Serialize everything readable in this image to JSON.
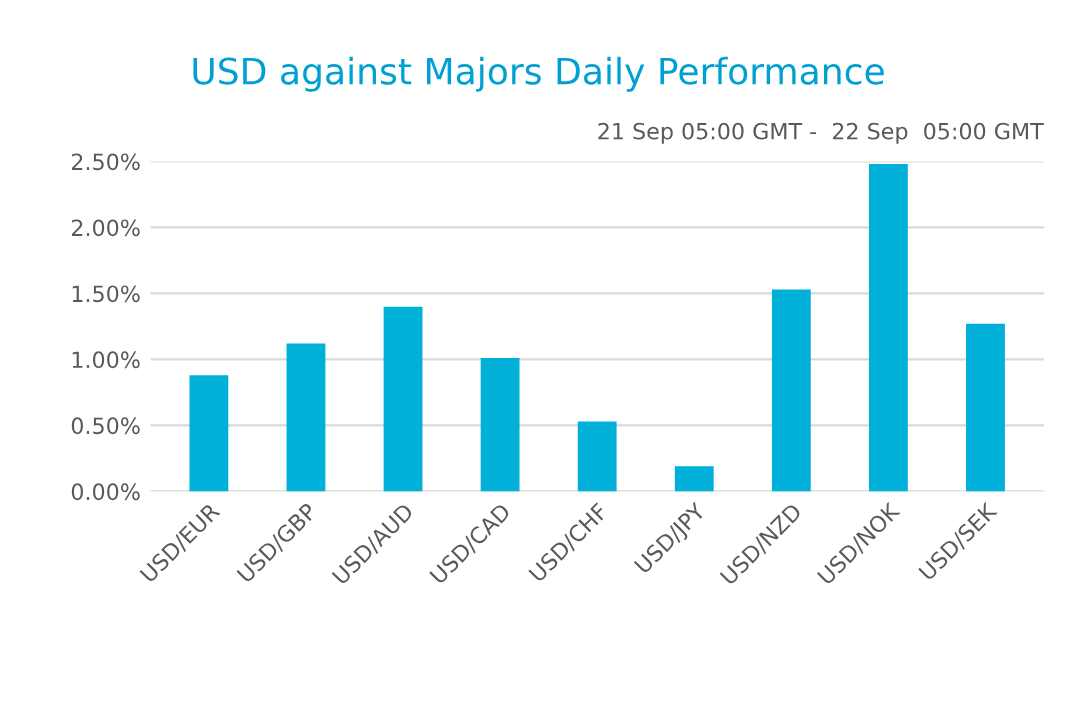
{
  "chart_data": {
    "type": "bar",
    "title": "USD against Majors Daily Performance",
    "subtitle": "21 Sep 05:00 GMT -  22 Sep  05:00 GMT",
    "categories": [
      "USD/EUR",
      "USD/GBP",
      "USD/AUD",
      "USD/CAD",
      "USD/CHF",
      "USD/JPY",
      "USD/NZD",
      "USD/NOK",
      "USD/SEK"
    ],
    "values": [
      0.88,
      1.12,
      1.4,
      1.01,
      0.53,
      0.19,
      1.53,
      2.48,
      1.27
    ],
    "color": "#00b0d8",
    "ylim": [
      0,
      2.5
    ],
    "yticks": [
      {
        "value": 0,
        "label": "0.00%"
      },
      {
        "value": 0.5,
        "label": "0.50%"
      },
      {
        "value": 1.0,
        "label": "1.00%"
      },
      {
        "value": 1.5,
        "label": "1.50%"
      },
      {
        "value": 2.0,
        "label": "2.00%"
      },
      {
        "value": 2.5,
        "label": "2.50%"
      }
    ],
    "grid": "y",
    "legend": false
  }
}
